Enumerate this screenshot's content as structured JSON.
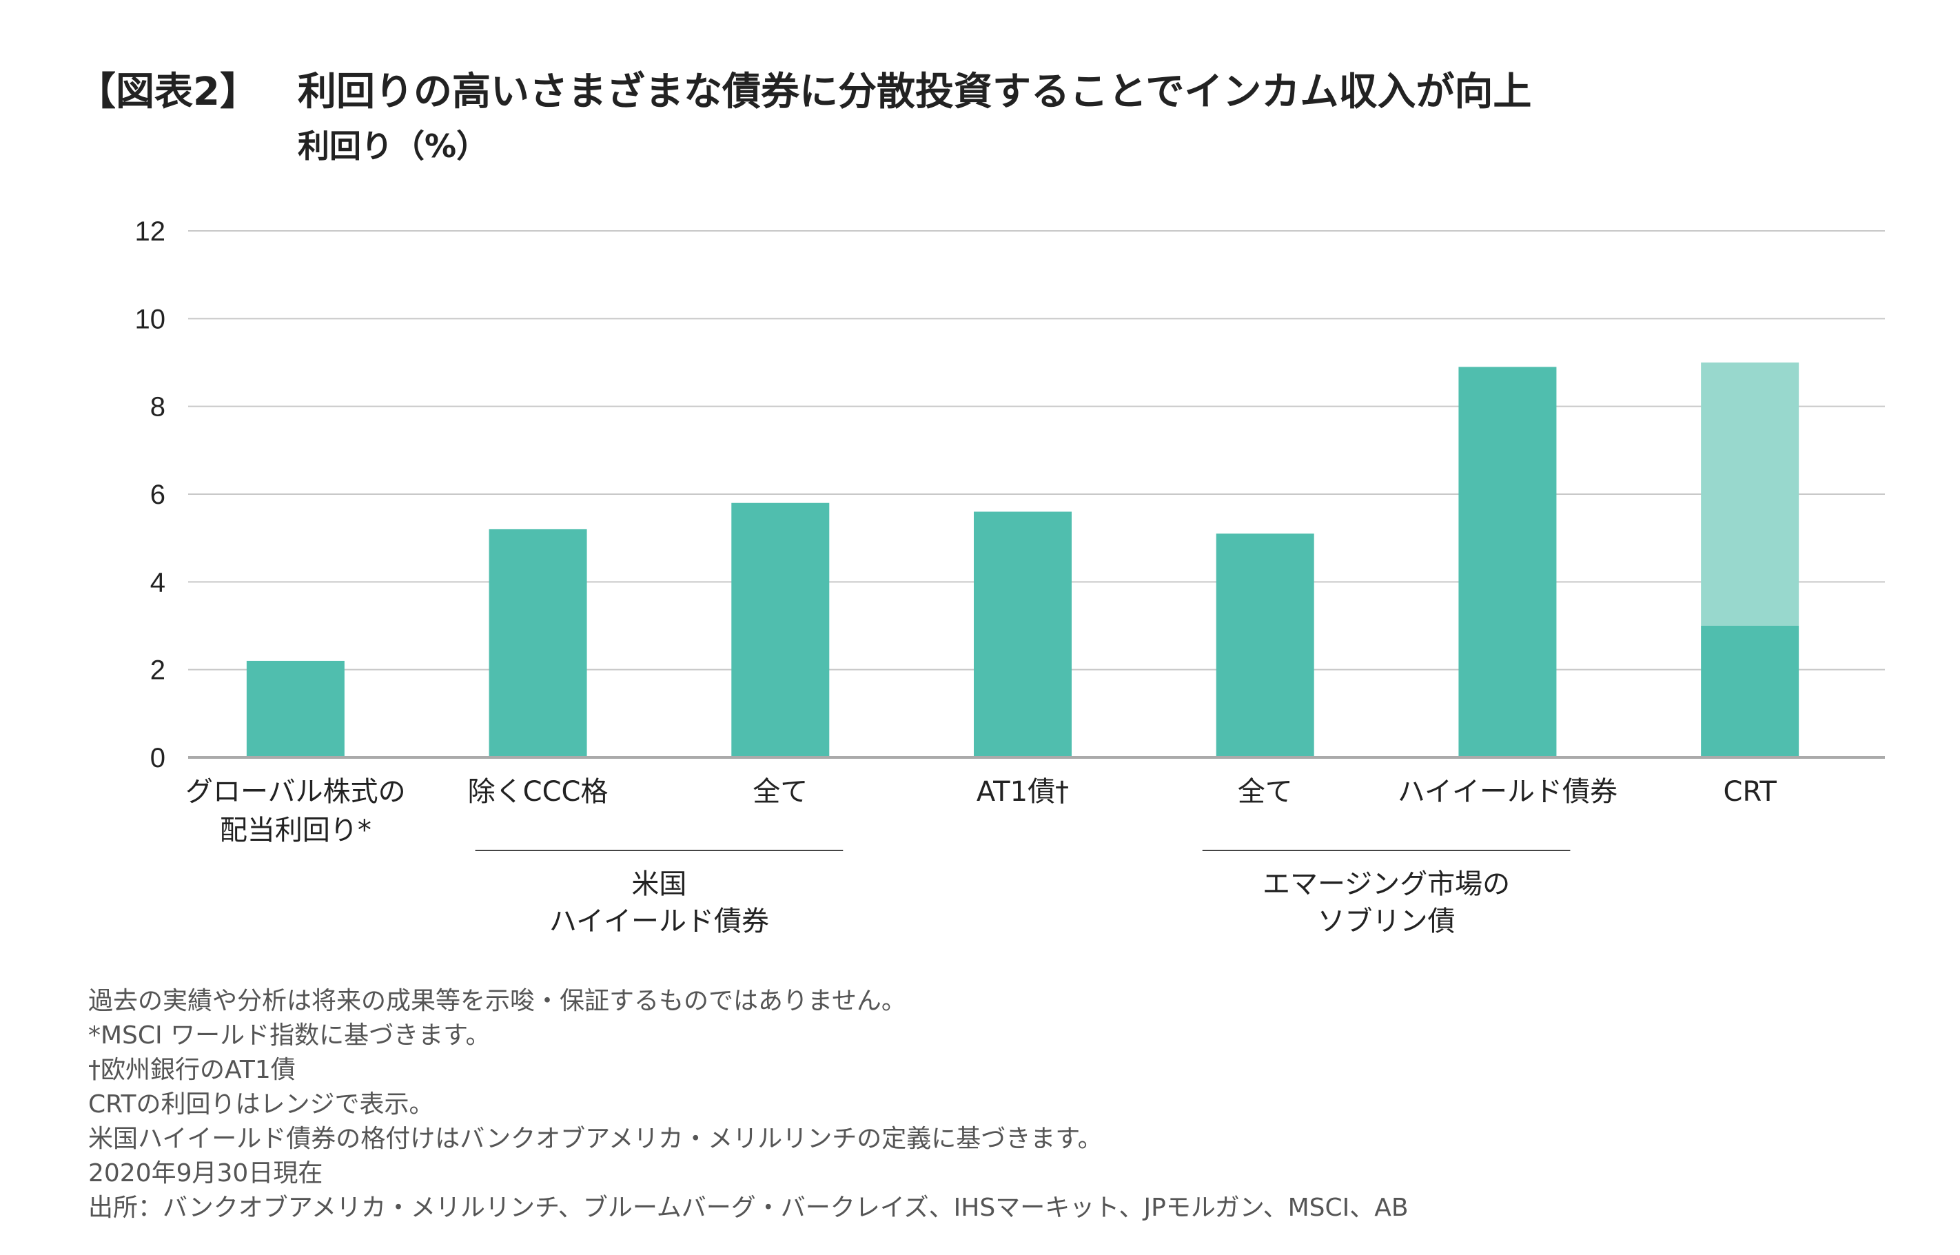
{
  "header": {
    "figure_tag": "【図表2】",
    "title": "利回りの高いさまざまな債券に分散投資することでインカム収入が向上"
  },
  "chart_data": {
    "type": "bar",
    "title": "利回りの高いさまざまな債券に分散投資することでインカム収入が向上",
    "ylabel": "利回り（%）",
    "xlabel": "",
    "ylim": [
      0,
      12
    ],
    "yticks": [
      "0",
      "2",
      "4",
      "6",
      "8",
      "10",
      "12"
    ],
    "grid": true,
    "categories": [
      [
        "グローバル株式の",
        "配当利回り*"
      ],
      [
        "除くCCC格"
      ],
      [
        "全て"
      ],
      [
        "AT1債†"
      ],
      [
        "全て"
      ],
      [
        "ハイイールド債券"
      ],
      [
        "CRT"
      ]
    ],
    "values": [
      2.2,
      5.2,
      5.8,
      5.6,
      5.1,
      8.9,
      3.0
    ],
    "ranges": [
      null,
      null,
      null,
      null,
      null,
      null,
      [
        3.0,
        9.0
      ]
    ],
    "groups": [
      {
        "label": [
          "米国",
          "ハイイールド債券"
        ],
        "members": [
          1,
          2
        ]
      },
      {
        "label": [
          "エマージング市場の",
          "ソブリン債"
        ],
        "members": [
          4,
          5
        ]
      }
    ],
    "colors": {
      "bar": "#50BEAE",
      "range": "#98D8CD",
      "grid": "#C8C8C8",
      "axis": "#AAAAAA"
    }
  },
  "notes": [
    "過去の実績や分析は将来の成果等を示唆・保証するものではありません。",
    "*MSCI ワールド指数に基づきます。",
    "†欧州銀行のAT1債",
    "CRTの利回りはレンジで表示。",
    "米国ハイイールド債券の格付けはバンクオブアメリカ・メリルリンチの定義に基づきます。",
    "2020年9月30日現在",
    "出所：バンクオブアメリカ・メリルリンチ、ブルームバーグ・バークレイズ、IHSマーキット、JPモルガン、MSCI、AB"
  ]
}
